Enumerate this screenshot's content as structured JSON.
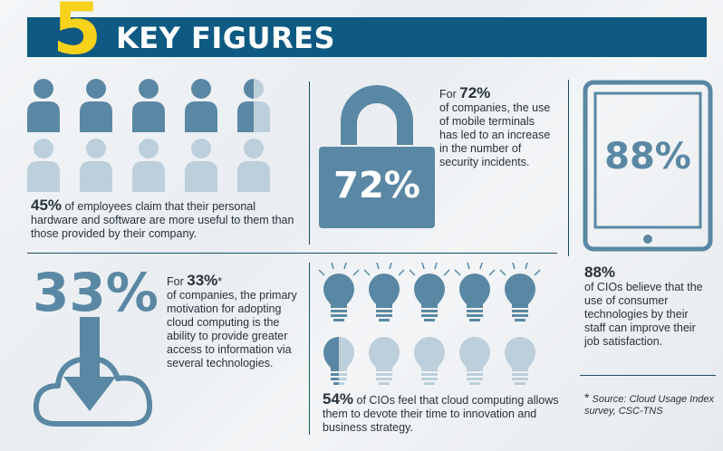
{
  "header": {
    "number": "5",
    "title": "KEY FIGURES"
  },
  "stat_employees": {
    "value": "45%",
    "text": " of employees claim that their personal hardware and software are more useful to them than those provided by their company."
  },
  "stat_security": {
    "big_value": "72%",
    "prefix": "For ",
    "value": "72%",
    "text": "of companies, the use of mobile terminals has led to an increase in the number of security incidents."
  },
  "stat_tablet": {
    "big_value": "88%",
    "value": "88%",
    "text": "of CIOs believe that the use of consumer technologies by their staff can improve their job satisfaction."
  },
  "stat_cloud": {
    "big_value": "33%",
    "prefix": "For ",
    "value": "33%",
    "marker": "*",
    "text": "of companies, the primary motivation for adopting cloud computing is the ability to provide greater access to information via several technologies."
  },
  "stat_innovation": {
    "value": "54%",
    "text": " of CIOs feel that cloud computing allows them to devote their time to innovation and business strategy."
  },
  "source": {
    "marker": "*",
    "text": "Source: Cloud Usage Index survey, CSC-TNS"
  },
  "colors": {
    "banner": "#0e5a82",
    "accent_yellow": "#f7d21a",
    "icon_dark": "#5a88a4",
    "icon_light": "#bccfdb"
  }
}
